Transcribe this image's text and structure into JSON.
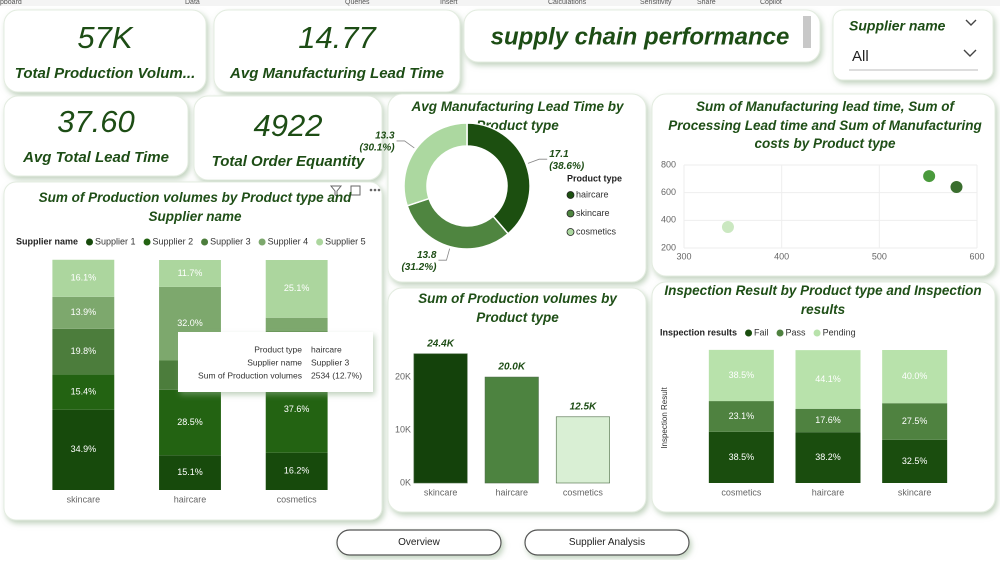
{
  "ribbon": [
    "pboard",
    "Data",
    "Queries",
    "Insert",
    "Calculations",
    "Sensitivity",
    "Share",
    "Copilot"
  ],
  "report_title": "supply chain performance",
  "kpis": [
    {
      "value": "57K",
      "label": "Total Production Volum..."
    },
    {
      "value": "14.77",
      "label": "Avg Manufacturing Lead Time"
    },
    {
      "value": "37.60",
      "label": "Avg Total Lead Time"
    },
    {
      "value": "4922",
      "label": "Total Order Equantity"
    }
  ],
  "slicer": {
    "label": "Supplier name",
    "value": "All"
  },
  "tooltip": {
    "rows": [
      [
        "Product type",
        "haircare"
      ],
      [
        "Supplier name",
        "Supplier 3"
      ],
      [
        "Sum of Production volumes",
        "2534 (12.7%)"
      ]
    ]
  },
  "pages": [
    "Overview",
    "Supplier Analysis"
  ],
  "chart_data": [
    {
      "type": "stacked_bar",
      "title": "Sum of Production volumes by Product type and Supplier name",
      "legend_title": "Supplier name",
      "categories": [
        "skincare",
        "haircare",
        "cosmetics"
      ],
      "ylim": [
        0,
        100
      ],
      "series": [
        {
          "name": "Supplier 1",
          "color": "#174a0c",
          "values": [
            34.9,
            15.1,
            16.2
          ],
          "value_labels": [
            "34.9%",
            "15.1%",
            "16.2%"
          ]
        },
        {
          "name": "Supplier 2",
          "color": "#236312",
          "values": [
            15.4,
            28.5,
            37.6
          ],
          "value_labels": [
            "15.4%",
            "28.5%",
            "37.6%"
          ]
        },
        {
          "name": "Supplier 3",
          "color": "#4c7d3c",
          "values": [
            19.8,
            12.7,
            15.1
          ],
          "value_labels": [
            "19.8%",
            null,
            null
          ]
        },
        {
          "name": "Supplier 4",
          "color": "#7da86d",
          "values": [
            13.9,
            32.0,
            6.0
          ],
          "value_labels": [
            "13.9%",
            "32.0%",
            null
          ]
        },
        {
          "name": "Supplier 5",
          "color": "#acd69e",
          "values": [
            16.1,
            11.7,
            25.1
          ],
          "value_labels": [
            "16.1%",
            "11.7%",
            "25.1%"
          ]
        }
      ]
    },
    {
      "type": "pie",
      "title": "Avg Manufacturing Lead Time by Product type",
      "legend_title": "Product type",
      "categories": [
        "haircare",
        "skincare",
        "cosmetics"
      ],
      "values": [
        17.1,
        13.8,
        13.3
      ],
      "percentages": [
        38.6,
        31.2,
        30.1
      ],
      "percent_labels": [
        "(38.6%)",
        "(31.2%)",
        "(30.1%)"
      ],
      "colors": [
        "#1c4f10",
        "#4f8540",
        "#acd8a0"
      ]
    },
    {
      "type": "scatter",
      "title": "Sum of Manufacturing lead time, Sum of Processing Lead time and Sum of Manufacturing costs by Product type",
      "xlim": [
        300,
        600
      ],
      "xticks": [
        300,
        400,
        500,
        600
      ],
      "ylim": [
        200,
        800
      ],
      "yticks": [
        200,
        400,
        600,
        800
      ],
      "grid": true,
      "series": [
        {
          "color": "#cbe8c1",
          "x": [
            345
          ],
          "y": [
            352
          ]
        },
        {
          "color": "#4a9a3c",
          "x": [
            551
          ],
          "y": [
            720
          ]
        },
        {
          "color": "#3a6e2e",
          "x": [
            579
          ],
          "y": [
            641
          ]
        }
      ]
    },
    {
      "type": "bar",
      "title": "Sum of Production volumes by Product type",
      "categories": [
        "skincare",
        "haircare",
        "cosmetics"
      ],
      "values": [
        24400,
        20000,
        12500
      ],
      "value_labels": [
        "24.4K",
        "20.0K",
        "12.5K"
      ],
      "colors": [
        "#14420b",
        "#4d8340",
        "#d9efd4"
      ],
      "ylim": [
        0,
        27000
      ],
      "yticks": [
        {
          "value": 0,
          "label": "0K"
        },
        {
          "value": 10000,
          "label": "10K"
        },
        {
          "value": 20000,
          "label": "20K"
        }
      ]
    },
    {
      "type": "stacked_bar",
      "title": "Inspection Result by Product type and Inspection results",
      "legend_title": "Inspection results",
      "y_label": "Inspection Result",
      "categories": [
        "cosmetics",
        "haircare",
        "skincare"
      ],
      "ylim": [
        0,
        100
      ],
      "series": [
        {
          "name": "Fail",
          "color": "#1a4d0e",
          "values": [
            38.5,
            38.2,
            32.5
          ],
          "value_labels": [
            "38.5%",
            "38.2%",
            "32.5%"
          ]
        },
        {
          "name": "Pass",
          "color": "#4f8240",
          "values": [
            23.1,
            17.6,
            27.5
          ],
          "value_labels": [
            "23.1%",
            "17.6%",
            "27.5%"
          ]
        },
        {
          "name": "Pending",
          "color": "#b8e2ab",
          "values": [
            38.5,
            44.1,
            40.0
          ],
          "value_labels": [
            "38.5%",
            "44.1%",
            "40.0%"
          ]
        }
      ]
    }
  ]
}
